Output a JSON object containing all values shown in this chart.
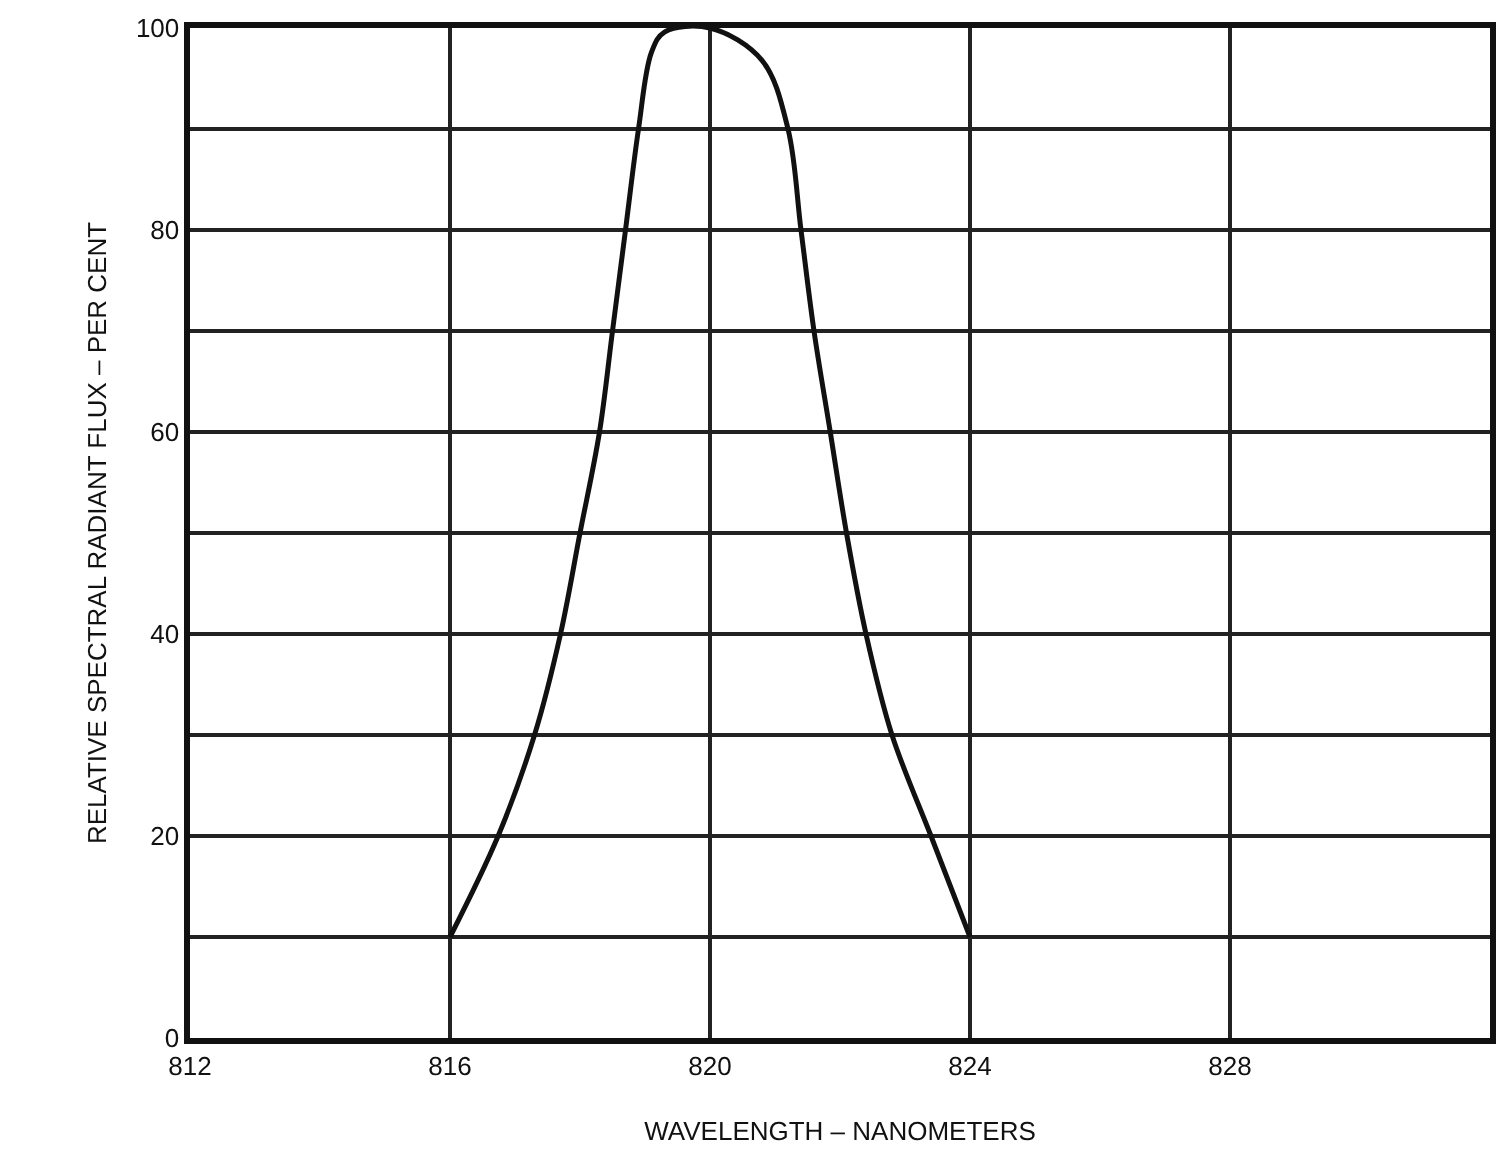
{
  "chart_data": {
    "type": "line",
    "xlabel": "WAVELENGTH – NANOMETERS",
    "ylabel": "RELATIVE SPECTRAL RADIANT FLUX – PER CENT",
    "x": [
      816,
      816.74,
      817.3,
      817.7,
      818.0,
      818.3,
      818.5,
      818.7,
      818.9,
      819.1,
      819.3,
      820.0,
      820.8,
      821.2,
      821.4,
      821.6,
      821.85,
      822.1,
      822.4,
      822.8,
      823.4,
      824.0
    ],
    "series": [
      {
        "color": "#111111",
        "values": [
          10,
          20,
          30,
          40,
          50,
          60,
          70,
          80,
          90,
          97.6,
          99.6,
          100,
          96.8,
          90,
          80,
          70,
          60,
          50,
          40,
          30,
          20,
          10
        ]
      }
    ],
    "xlim": [
      812,
      832
    ],
    "xticks": [
      812,
      816,
      820,
      824,
      828
    ],
    "ylim": [
      0,
      100
    ],
    "yticks": [
      0,
      {
        "value": 10,
        "label": null
      },
      20,
      {
        "value": 30,
        "label": null
      },
      40,
      {
        "value": 50,
        "label": null
      },
      60,
      {
        "value": 70,
        "label": null
      },
      80,
      {
        "value": 90,
        "label": null
      },
      100
    ],
    "grid": true,
    "marker": "none",
    "line_style": "solid"
  }
}
